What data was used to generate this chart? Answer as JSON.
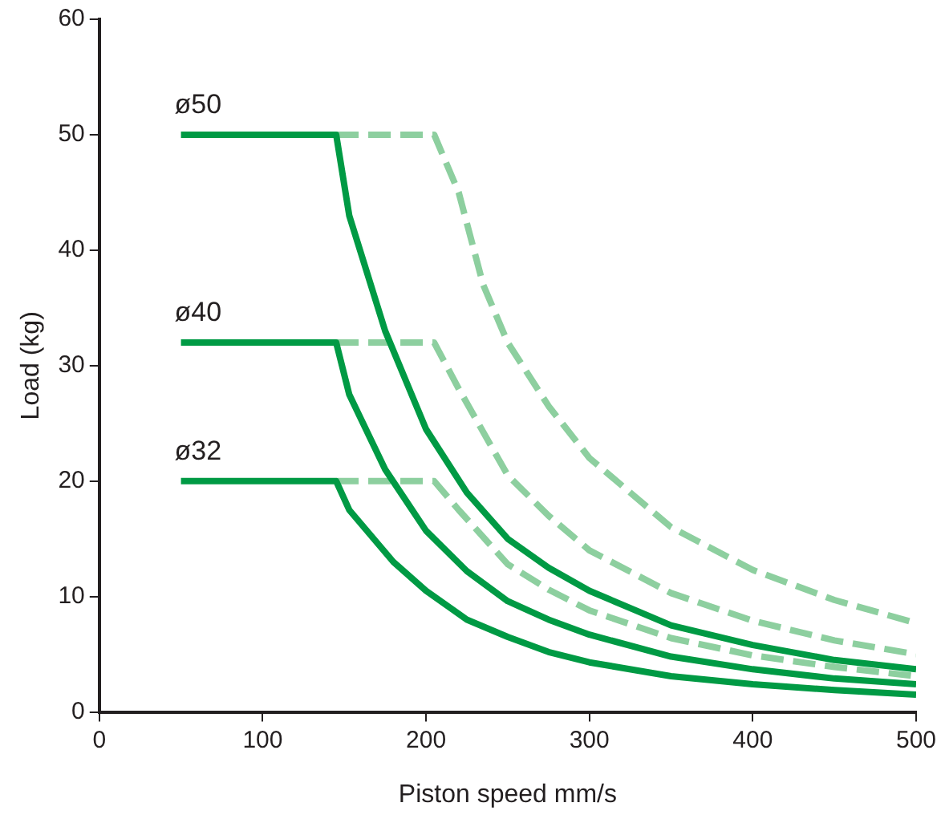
{
  "chart_data": {
    "type": "line",
    "xlabel": "Piston speed mm/s",
    "ylabel": "Load (kg)",
    "xlim": [
      0,
      500
    ],
    "xticks": [
      0,
      100,
      200,
      300,
      400,
      500
    ],
    "ylim": [
      0,
      60
    ],
    "yticks": [
      0,
      10,
      20,
      30,
      40,
      50,
      60
    ],
    "grid": false,
    "legend": false,
    "marker": "none",
    "series": [
      {
        "color": "#009a44",
        "line_style": "solid",
        "x": [
          50,
          145,
          153,
          175,
          200,
          225,
          250,
          275,
          300,
          350,
          400,
          450,
          500
        ],
        "values": [
          50,
          50,
          43,
          33,
          24.5,
          19,
          15,
          12.5,
          10.5,
          7.5,
          5.8,
          4.5,
          3.7
        ]
      },
      {
        "color": "#009a44",
        "line_style": "solid",
        "x": [
          50,
          145,
          153,
          175,
          200,
          225,
          250,
          275,
          300,
          350,
          400,
          450,
          500
        ],
        "values": [
          32,
          32,
          27.5,
          21,
          15.7,
          12.2,
          9.6,
          8,
          6.7,
          4.8,
          3.7,
          2.9,
          2.4
        ]
      },
      {
        "color": "#009a44",
        "line_style": "solid",
        "x": [
          50,
          145,
          153,
          180,
          200,
          225,
          250,
          275,
          300,
          350,
          400,
          450,
          500
        ],
        "values": [
          20,
          20,
          17.5,
          13,
          10.5,
          8,
          6.5,
          5.2,
          4.3,
          3.1,
          2.4,
          1.9,
          1.5
        ]
      },
      {
        "color": "#8dcf9f",
        "line_style": "dashed",
        "x": [
          145,
          205,
          220,
          235,
          250,
          275,
          300,
          350,
          400,
          450,
          500
        ],
        "values": [
          50,
          50,
          45,
          37,
          32,
          26.5,
          22,
          16,
          12.3,
          9.7,
          7.7
        ]
      },
      {
        "color": "#8dcf9f",
        "line_style": "dashed",
        "x": [
          145,
          205,
          220,
          250,
          275,
          300,
          350,
          400,
          450,
          500
        ],
        "values": [
          32,
          32,
          28,
          20.5,
          17,
          14,
          10.3,
          7.9,
          6.2,
          5
        ]
      },
      {
        "color": "#8dcf9f",
        "line_style": "dashed",
        "x": [
          145,
          205,
          220,
          250,
          275,
          300,
          350,
          400,
          450,
          500
        ],
        "values": [
          20,
          20,
          17.5,
          12.8,
          10.6,
          8.8,
          6.4,
          4.9,
          3.9,
          3.1
        ]
      }
    ],
    "annotations": [
      "ø50",
      "ø40",
      "ø32"
    ]
  }
}
